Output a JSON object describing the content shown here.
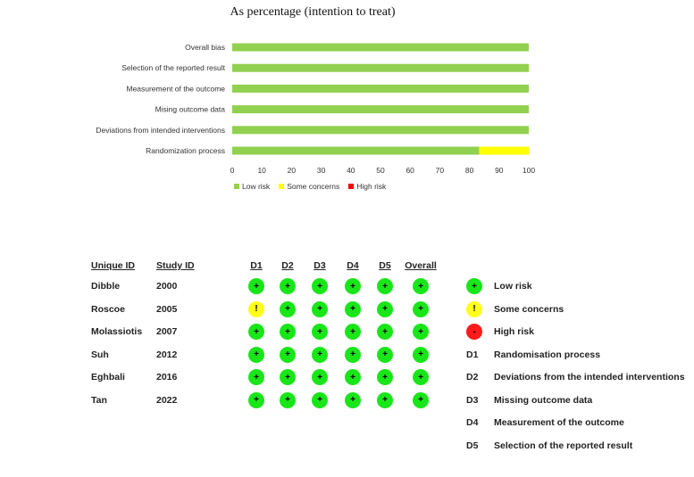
{
  "chart_data": {
    "type": "bar",
    "orientation": "horizontal",
    "stacked": true,
    "title": "As percentage (intention to treat)",
    "categories": [
      "Overall bias",
      "Selection of the reported result",
      "Measurement of the outcome",
      "Mising outcome data",
      "Deviations from intended interventions",
      "Randomization process"
    ],
    "series": [
      {
        "name": "Low risk",
        "color": "#92d050",
        "values": [
          100,
          100,
          100,
          100,
          100,
          83.3
        ]
      },
      {
        "name": "Some concerns",
        "color": "#ffff00",
        "values": [
          0,
          0,
          0,
          0,
          0,
          16.7
        ]
      },
      {
        "name": "High risk",
        "color": "#ff0000",
        "values": [
          0,
          0,
          0,
          0,
          0,
          0
        ]
      }
    ],
    "xlim": [
      0,
      100
    ],
    "xticks": [
      "0",
      "10",
      "20",
      "30",
      "40",
      "50",
      "60",
      "70",
      "80",
      "90",
      "100"
    ],
    "legend_position": "bottom"
  },
  "rob_table": {
    "headers": {
      "unique_id": "Unique ID",
      "study_id": "Study ID",
      "domains": [
        "D1",
        "D2",
        "D3",
        "D4",
        "D5",
        "Overall"
      ]
    },
    "rows": [
      {
        "unique_id": "Dibble",
        "study_id": "2000",
        "judgements": [
          "low",
          "low",
          "low",
          "low",
          "low",
          "low"
        ]
      },
      {
        "unique_id": "Roscoe",
        "study_id": "2005",
        "judgements": [
          "some",
          "low",
          "low",
          "low",
          "low",
          "low"
        ]
      },
      {
        "unique_id": "Molassiotis",
        "study_id": "2007",
        "judgements": [
          "low",
          "low",
          "low",
          "low",
          "low",
          "low"
        ]
      },
      {
        "unique_id": "Suh",
        "study_id": "2012",
        "judgements": [
          "low",
          "low",
          "low",
          "low",
          "low",
          "low"
        ]
      },
      {
        "unique_id": "Eghbali",
        "study_id": "2016",
        "judgements": [
          "low",
          "low",
          "low",
          "low",
          "low",
          "low"
        ]
      },
      {
        "unique_id": "Tan",
        "study_id": "2022",
        "judgements": [
          "low",
          "low",
          "low",
          "low",
          "low",
          "low"
        ]
      }
    ],
    "symbols": {
      "low": "+",
      "some": "!",
      "high": "-"
    }
  },
  "key": {
    "judgements": [
      {
        "type": "low",
        "label": "Low risk"
      },
      {
        "type": "some",
        "label": "Some concerns"
      },
      {
        "type": "high",
        "label": "High risk"
      }
    ],
    "domains": [
      {
        "code": "D1",
        "label": "Randomisation process"
      },
      {
        "code": "D2",
        "label": "Deviations from the intended interventions"
      },
      {
        "code": "D3",
        "label": "Missing outcome data"
      },
      {
        "code": "D4",
        "label": "Measurement of the outcome"
      },
      {
        "code": "D5",
        "label": "Selection of the reported result"
      }
    ]
  }
}
